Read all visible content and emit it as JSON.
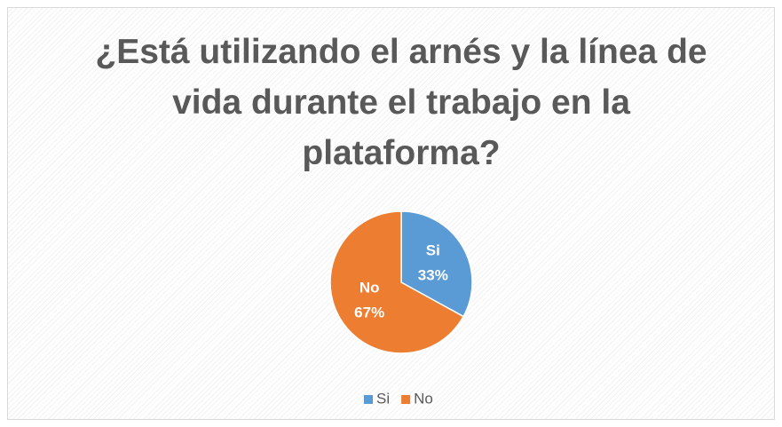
{
  "chart_data": {
    "type": "pie",
    "title": "¿Está utilizando el arnés y la línea de vida durante el trabajo en la plataforma?",
    "categories": [
      "Si",
      "No"
    ],
    "values": [
      33,
      67
    ],
    "value_labels": [
      "33%",
      "67%"
    ],
    "colors": [
      "#5b9bd5",
      "#ed7d31"
    ],
    "legend": "bottom"
  }
}
